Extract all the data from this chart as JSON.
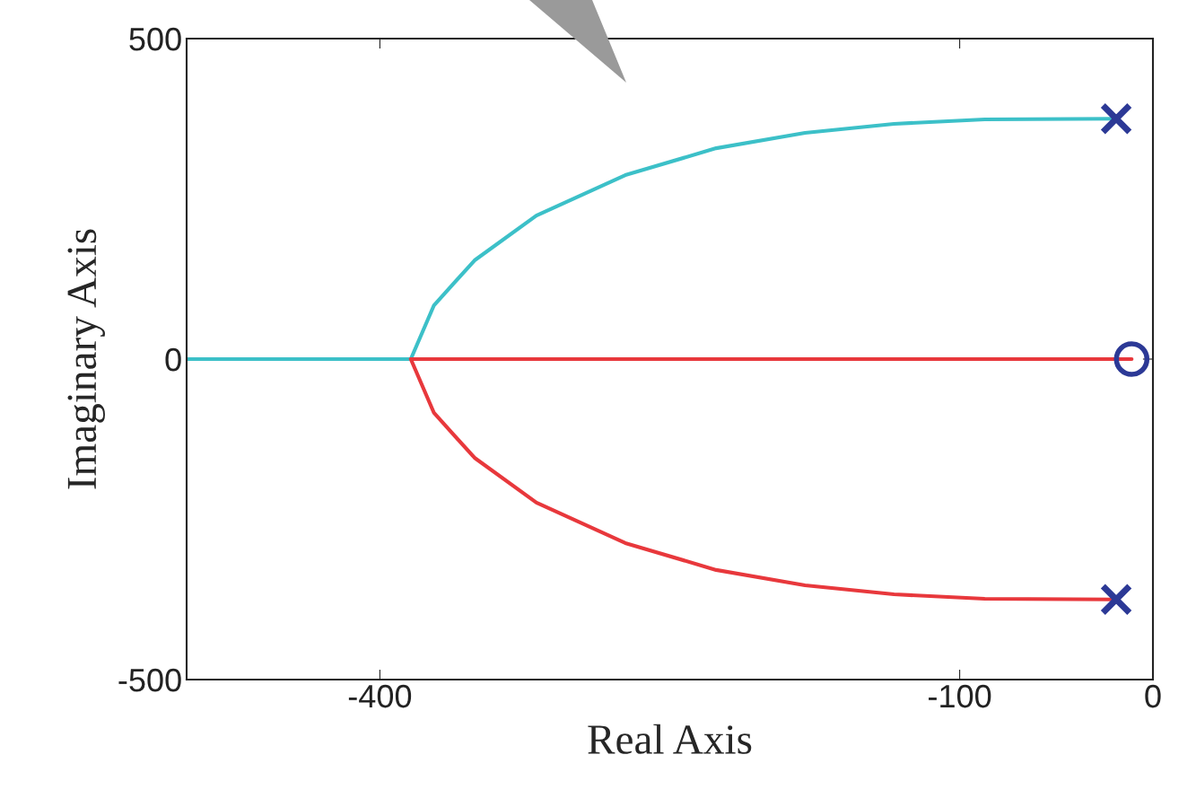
{
  "chart_data": {
    "type": "line",
    "xlabel": "Real Axis",
    "ylabel": "Imaginary Axis",
    "xlim": [
      -500,
      0
    ],
    "ylim": [
      -500,
      500
    ],
    "xticks": [
      -400,
      -100,
      0
    ],
    "yticks": [
      -500,
      0,
      500
    ],
    "grid": false,
    "legend": false,
    "series": [
      {
        "color": "#3cc0c8",
        "x": [
          -19,
          -87,
          -134,
          -180,
          -226,
          -273,
          -319,
          -351,
          -372,
          -384,
          -450,
          -500
        ],
        "values": [
          375,
          374,
          367,
          353,
          329,
          287,
          224,
          154,
          84,
          0,
          0,
          0
        ],
        "marker": "none"
      },
      {
        "color": "#e8383c",
        "x": [
          -19,
          -87,
          -134,
          -180,
          -226,
          -273,
          -319,
          -351,
          -372,
          -384,
          -200,
          -11
        ],
        "values": [
          -375,
          -374,
          -367,
          -353,
          -329,
          -287,
          -224,
          -154,
          -84,
          0,
          0,
          0
        ],
        "marker": "none"
      },
      {
        "type": "scatter",
        "color": "#2c3996",
        "x": [
          -19,
          -19
        ],
        "values": [
          375,
          -375
        ],
        "marker": "cross"
      },
      {
        "type": "scatter",
        "color": "#2c3996",
        "x": [
          -11
        ],
        "values": [
          0
        ],
        "marker": "circle"
      }
    ]
  }
}
